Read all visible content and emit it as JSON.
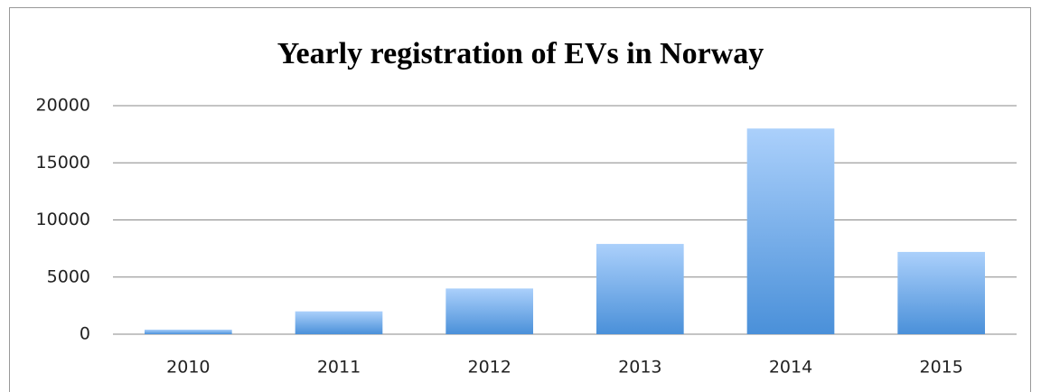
{
  "chart_data": {
    "type": "bar",
    "title": "Yearly registration of EVs in Norway",
    "categories": [
      "2010",
      "2011",
      "2012",
      "2013",
      "2014",
      "2015"
    ],
    "values": [
      400,
      2000,
      4000,
      7900,
      18000,
      7200
    ],
    "color": "#4a90d9",
    "ylim": [
      0,
      20000
    ],
    "yticks": [
      0,
      5000,
      10000,
      15000,
      20000
    ],
    "grid": true
  }
}
